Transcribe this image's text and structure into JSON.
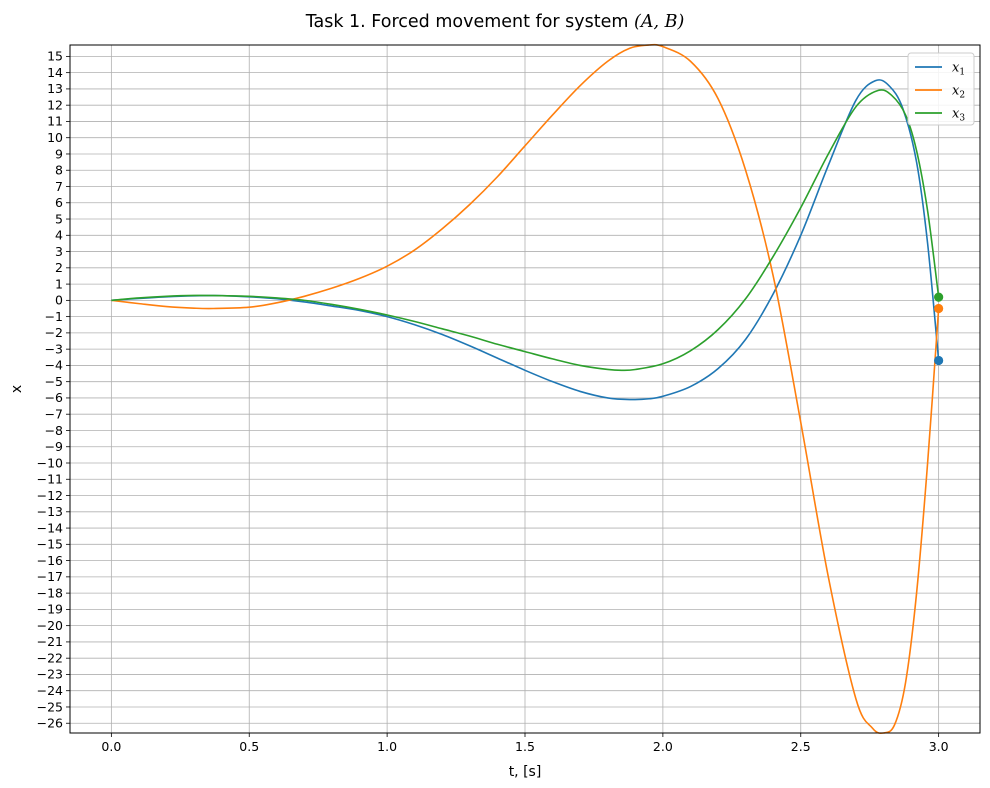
{
  "chart_data": {
    "type": "line",
    "title": "Task 1. Forced movement for system (A, B)",
    "title_parts": {
      "prefix": "Task 1. Forced movement for system ",
      "math": "(A, B)"
    },
    "xlabel": "t, [s]",
    "ylabel": "x",
    "xlim": [
      -0.15,
      3.15
    ],
    "ylim": [
      -26.6,
      15.7
    ],
    "x_ticks": [
      0.0,
      0.5,
      1.0,
      1.5,
      2.0,
      2.5,
      3.0
    ],
    "x_tick_labels": [
      "0.0",
      "0.5",
      "1.0",
      "1.5",
      "2.0",
      "2.5",
      "3.0"
    ],
    "y_ticks": [
      15,
      14,
      13,
      12,
      11,
      10,
      9,
      8,
      7,
      6,
      5,
      4,
      3,
      2,
      1,
      0,
      -1,
      -2,
      -3,
      -4,
      -5,
      -6,
      -7,
      -8,
      -9,
      -10,
      -11,
      -12,
      -13,
      -14,
      -15,
      -16,
      -17,
      -18,
      -19,
      -20,
      -21,
      -22,
      -23,
      -24,
      -25,
      -26
    ],
    "y_tick_labels": [
      "15",
      "14",
      "13",
      "12",
      "11",
      "10",
      "9",
      "8",
      "7",
      "6",
      "5",
      "4",
      "3",
      "2",
      "1",
      "0",
      "−1",
      "−2",
      "−3",
      "−4",
      "−5",
      "−6",
      "−7",
      "−8",
      "−9",
      "−10",
      "−11",
      "−12",
      "−13",
      "−14",
      "−15",
      "−16",
      "−17",
      "−18",
      "−19",
      "−20",
      "−21",
      "−22",
      "−23",
      "−24",
      "−25",
      "−26"
    ],
    "grid": true,
    "legend_position": "top-right",
    "series": [
      {
        "name": "x1",
        "label_base": "x",
        "label_sub": "1",
        "color": "#1f77b4",
        "end_marker": {
          "x": 3.0,
          "y": -3.7
        },
        "points": [
          [
            0.0,
            0.0
          ],
          [
            0.1,
            0.12
          ],
          [
            0.2,
            0.22
          ],
          [
            0.3,
            0.28
          ],
          [
            0.4,
            0.29
          ],
          [
            0.5,
            0.22
          ],
          [
            0.6,
            0.1
          ],
          [
            0.7,
            -0.1
          ],
          [
            0.8,
            -0.35
          ],
          [
            0.9,
            -0.62
          ],
          [
            1.0,
            -1.0
          ],
          [
            1.1,
            -1.5
          ],
          [
            1.2,
            -2.1
          ],
          [
            1.3,
            -2.8
          ],
          [
            1.4,
            -3.55
          ],
          [
            1.5,
            -4.3
          ],
          [
            1.6,
            -5.0
          ],
          [
            1.7,
            -5.6
          ],
          [
            1.8,
            -6.0
          ],
          [
            1.88,
            -6.1
          ],
          [
            1.95,
            -6.05
          ],
          [
            2.0,
            -5.9
          ],
          [
            2.1,
            -5.3
          ],
          [
            2.2,
            -4.2
          ],
          [
            2.3,
            -2.4
          ],
          [
            2.4,
            0.4
          ],
          [
            2.5,
            4.0
          ],
          [
            2.6,
            8.3
          ],
          [
            2.7,
            12.3
          ],
          [
            2.77,
            13.5
          ],
          [
            2.82,
            13.2
          ],
          [
            2.87,
            11.8
          ],
          [
            2.92,
            8.5
          ],
          [
            2.96,
            3.5
          ],
          [
            3.0,
            -3.7
          ]
        ]
      },
      {
        "name": "x2",
        "label_base": "x",
        "label_sub": "2",
        "color": "#ff7f0e",
        "end_marker": {
          "x": 3.0,
          "y": -0.5
        },
        "points": [
          [
            0.0,
            0.0
          ],
          [
            0.1,
            -0.2
          ],
          [
            0.2,
            -0.38
          ],
          [
            0.3,
            -0.48
          ],
          [
            0.37,
            -0.5
          ],
          [
            0.5,
            -0.42
          ],
          [
            0.6,
            -0.15
          ],
          [
            0.7,
            0.25
          ],
          [
            0.8,
            0.75
          ],
          [
            0.9,
            1.35
          ],
          [
            1.0,
            2.1
          ],
          [
            1.1,
            3.1
          ],
          [
            1.2,
            4.4
          ],
          [
            1.3,
            5.9
          ],
          [
            1.4,
            7.6
          ],
          [
            1.5,
            9.5
          ],
          [
            1.6,
            11.4
          ],
          [
            1.7,
            13.2
          ],
          [
            1.8,
            14.7
          ],
          [
            1.88,
            15.5
          ],
          [
            1.95,
            15.7
          ],
          [
            2.0,
            15.6
          ],
          [
            2.1,
            14.7
          ],
          [
            2.2,
            12.4
          ],
          [
            2.3,
            8.0
          ],
          [
            2.4,
            1.5
          ],
          [
            2.5,
            -7.5
          ],
          [
            2.6,
            -17.0
          ],
          [
            2.7,
            -24.5
          ],
          [
            2.76,
            -26.3
          ],
          [
            2.8,
            -26.6
          ],
          [
            2.84,
            -26.1
          ],
          [
            2.88,
            -23.5
          ],
          [
            2.92,
            -18.0
          ],
          [
            2.96,
            -10.0
          ],
          [
            3.0,
            -0.5
          ]
        ]
      },
      {
        "name": "x3",
        "label_base": "x",
        "label_sub": "3",
        "color": "#2ca02c",
        "end_marker": {
          "x": 3.0,
          "y": 0.2
        },
        "points": [
          [
            0.0,
            0.0
          ],
          [
            0.1,
            0.15
          ],
          [
            0.2,
            0.25
          ],
          [
            0.3,
            0.3
          ],
          [
            0.4,
            0.29
          ],
          [
            0.5,
            0.25
          ],
          [
            0.6,
            0.15
          ],
          [
            0.7,
            0.0
          ],
          [
            0.8,
            -0.25
          ],
          [
            0.9,
            -0.55
          ],
          [
            1.0,
            -0.9
          ],
          [
            1.1,
            -1.3
          ],
          [
            1.2,
            -1.75
          ],
          [
            1.3,
            -2.2
          ],
          [
            1.4,
            -2.7
          ],
          [
            1.5,
            -3.15
          ],
          [
            1.6,
            -3.6
          ],
          [
            1.7,
            -4.0
          ],
          [
            1.8,
            -4.25
          ],
          [
            1.85,
            -4.3
          ],
          [
            1.9,
            -4.25
          ],
          [
            2.0,
            -3.9
          ],
          [
            2.1,
            -3.1
          ],
          [
            2.2,
            -1.8
          ],
          [
            2.3,
            0.1
          ],
          [
            2.4,
            2.7
          ],
          [
            2.5,
            5.7
          ],
          [
            2.6,
            9.0
          ],
          [
            2.7,
            11.9
          ],
          [
            2.78,
            12.9
          ],
          [
            2.83,
            12.6
          ],
          [
            2.88,
            11.4
          ],
          [
            2.92,
            9.2
          ],
          [
            2.96,
            5.5
          ],
          [
            3.0,
            0.2
          ]
        ]
      }
    ]
  }
}
